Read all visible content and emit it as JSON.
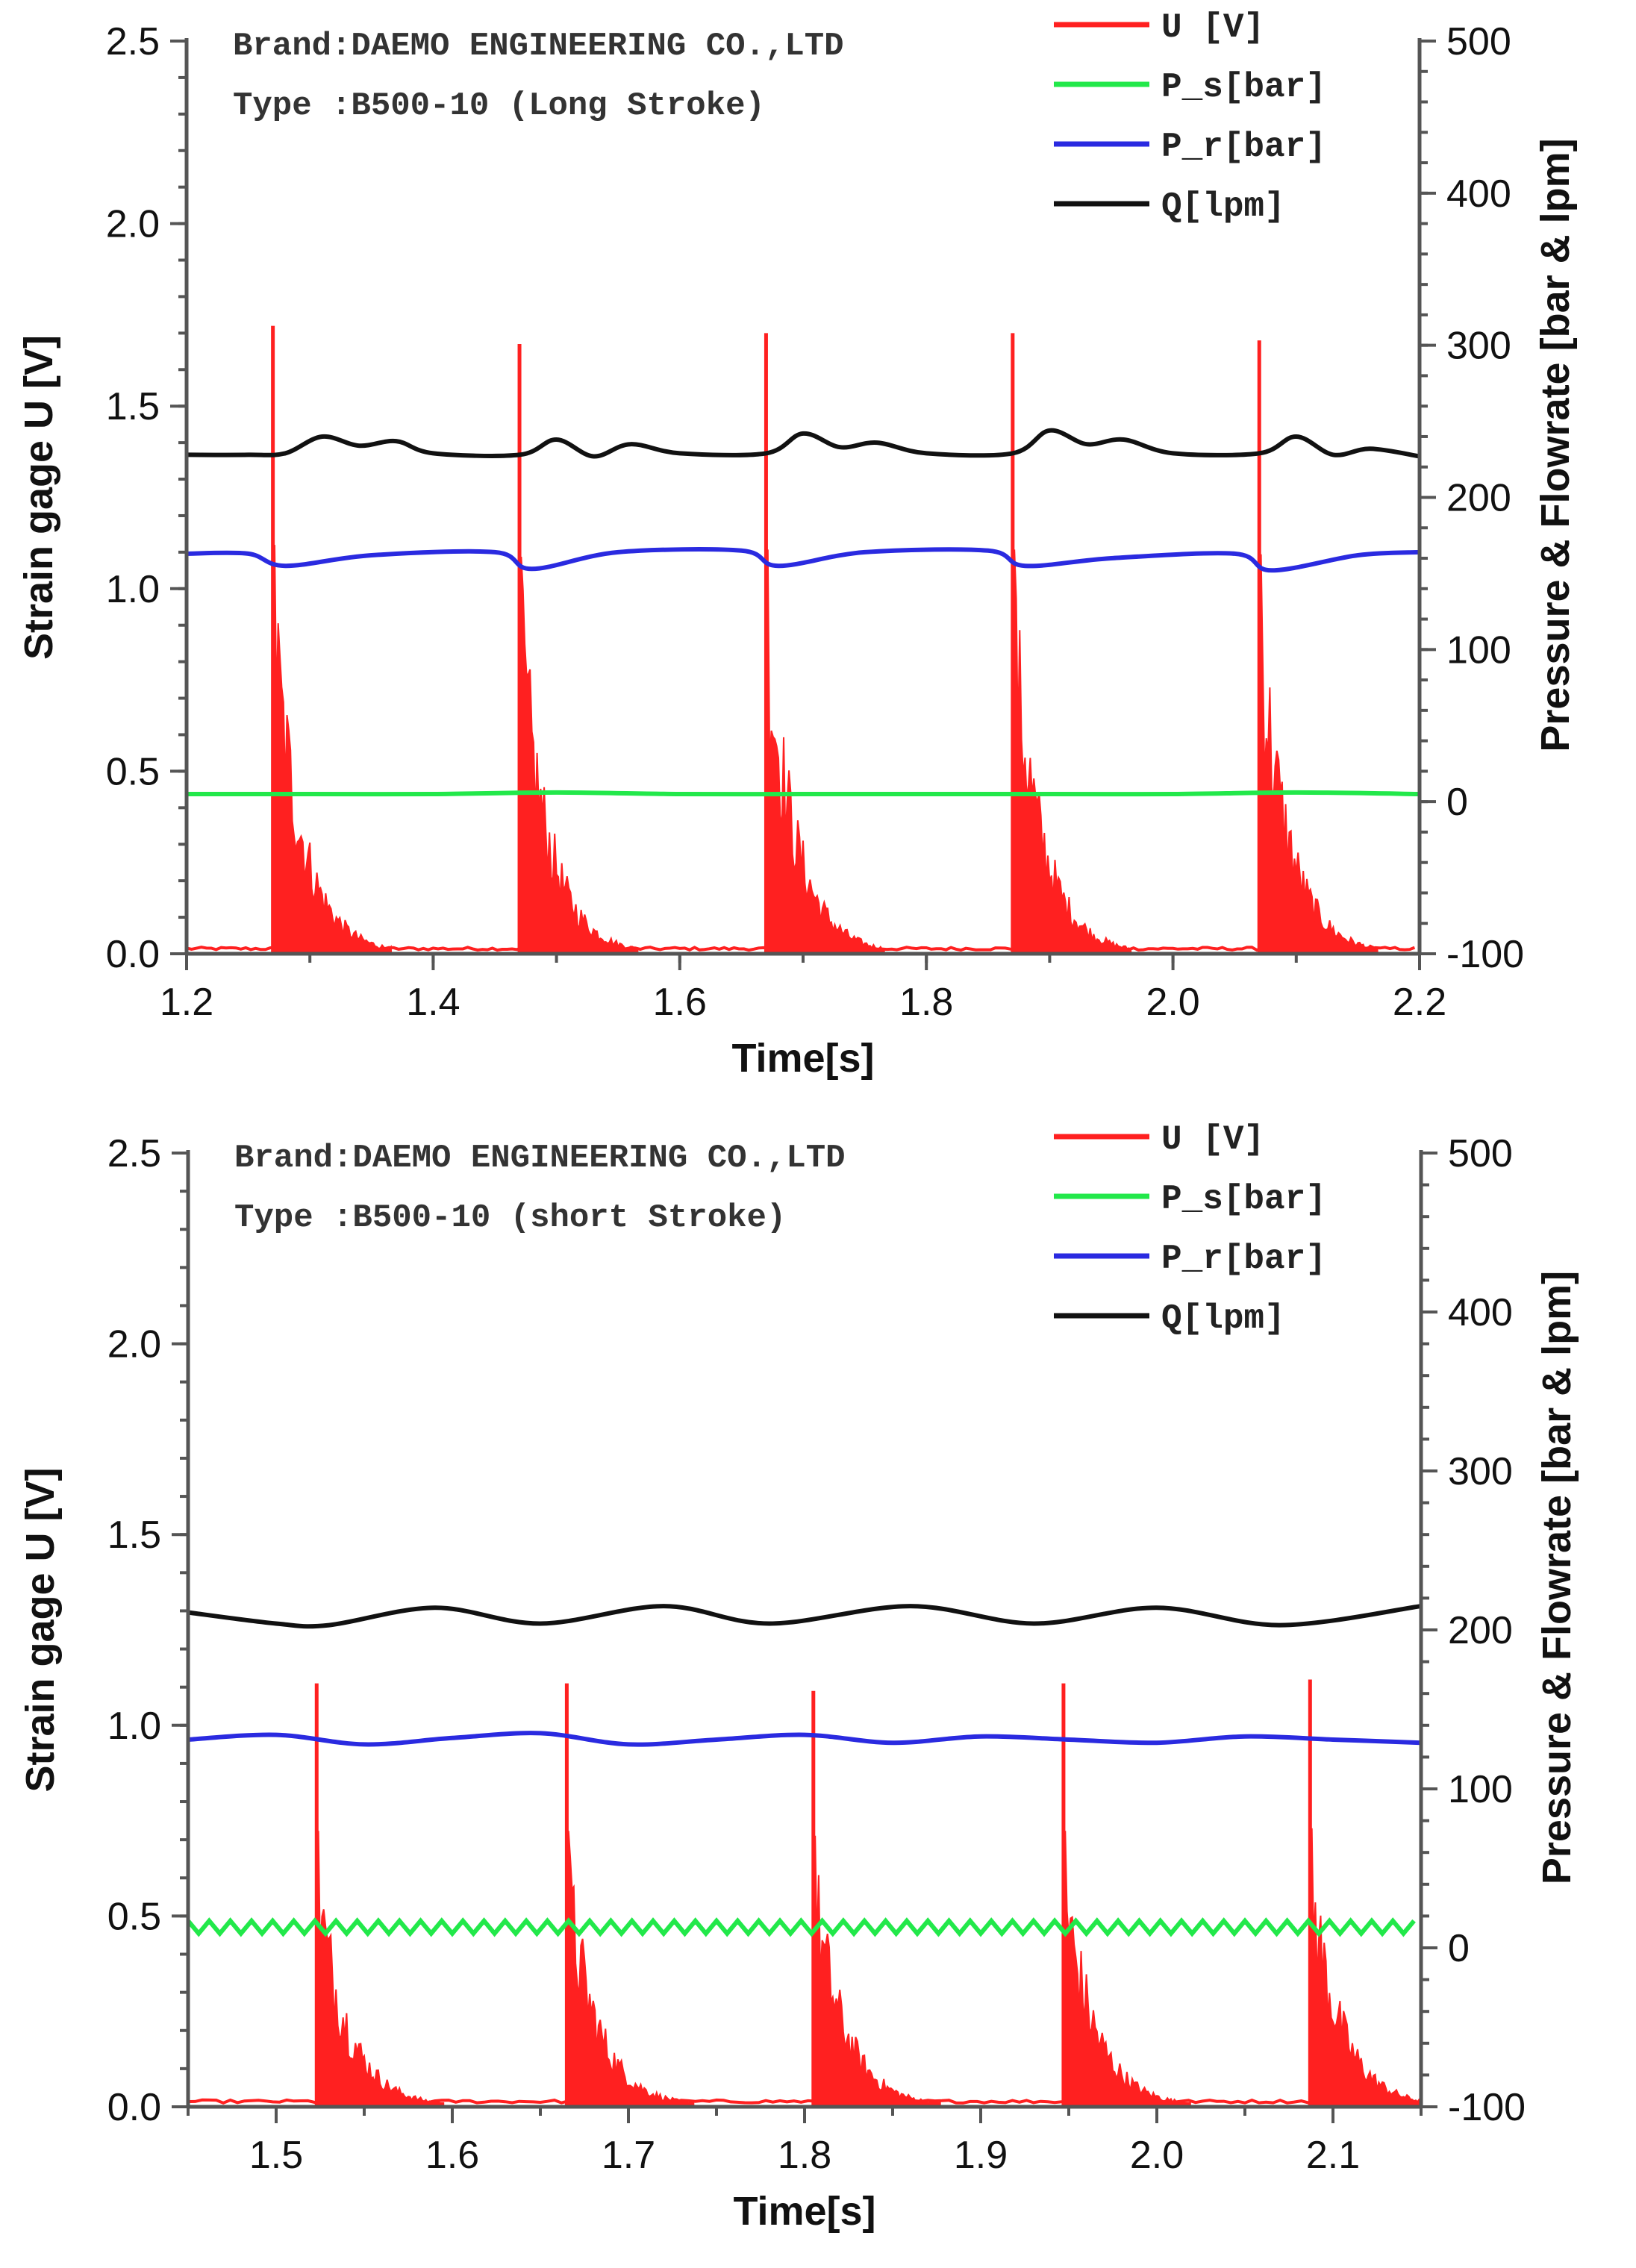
{
  "chart_data": [
    {
      "type": "line",
      "annotations": [
        "Brand:DAEMO ENGINEERING CO.,LTD",
        "Type :B500-10 (Long Stroke)"
      ],
      "xlabel": "Time[s]",
      "ylabel": "Strain gage U [V]",
      "y2label": "Pressure & Flowrate [bar & lpm]",
      "xlim": [
        1.2,
        2.2
      ],
      "ylim": [
        0.0,
        2.5
      ],
      "y2lim": [
        -100,
        500
      ],
      "xticks": [
        "1.2",
        "1.4",
        "1.6",
        "1.8",
        "2.0",
        "2.2"
      ],
      "yticks": [
        "0.0",
        "0.5",
        "1.0",
        "1.5",
        "2.0",
        "2.5"
      ],
      "y2ticks": [
        "-100",
        "0",
        "100",
        "200",
        "300",
        "400",
        "500"
      ],
      "legend_position": "top-right",
      "series": [
        {
          "name": "U [V]",
          "axis": "left",
          "color": "#ff2020",
          "kind": "spike-train",
          "pulse_times": [
            1.27,
            1.47,
            1.67,
            1.87,
            2.07
          ],
          "peak_values": [
            1.72,
            1.67,
            1.7,
            1.7,
            1.68
          ],
          "decay_width": 0.06,
          "baseline": 0.01
        },
        {
          "name": "P_s[bar]",
          "axis": "right",
          "color": "#22e84a",
          "kind": "line",
          "x": [
            1.2,
            1.3,
            1.4,
            1.5,
            1.6,
            1.7,
            1.8,
            1.9,
            2.0,
            2.1,
            2.2
          ],
          "y": [
            5,
            5,
            5,
            6,
            5,
            5,
            5,
            5,
            5,
            6,
            5
          ]
        },
        {
          "name": "P_r[bar]",
          "axis": "right",
          "color": "#2a2ae0",
          "kind": "line",
          "x": [
            1.2,
            1.25,
            1.28,
            1.35,
            1.45,
            1.48,
            1.55,
            1.65,
            1.68,
            1.75,
            1.85,
            1.88,
            1.95,
            2.05,
            2.08,
            2.15,
            2.2
          ],
          "y": [
            163,
            163,
            155,
            162,
            164,
            153,
            164,
            165,
            155,
            164,
            165,
            155,
            160,
            163,
            152,
            162,
            164
          ]
        },
        {
          "name": "Q[lpm]",
          "axis": "right",
          "color": "#111111",
          "kind": "line",
          "x": [
            1.2,
            1.25,
            1.28,
            1.31,
            1.34,
            1.37,
            1.4,
            1.47,
            1.5,
            1.53,
            1.56,
            1.6,
            1.67,
            1.7,
            1.73,
            1.76,
            1.8,
            1.87,
            1.9,
            1.93,
            1.96,
            2.0,
            2.07,
            2.1,
            2.13,
            2.16,
            2.2
          ],
          "y": [
            228,
            228,
            229,
            240,
            234,
            237,
            229,
            228,
            238,
            227,
            235,
            229,
            229,
            242,
            233,
            236,
            229,
            229,
            244,
            235,
            238,
            229,
            229,
            240,
            228,
            232,
            227
          ]
        }
      ]
    },
    {
      "type": "line",
      "annotations": [
        "Brand:DAEMO ENGINEERING CO.,LTD",
        "Type :B500-10 (short Stroke)"
      ],
      "xlabel": "Time[s]",
      "ylabel": "Strain gage U [V]",
      "y2label": "Pressure & Flowrate [bar & lpm]",
      "xlim": [
        1.45,
        2.15
      ],
      "ylim": [
        0.0,
        2.5
      ],
      "y2lim": [
        -100,
        500
      ],
      "xticks": [
        "1.5",
        "1.6",
        "1.7",
        "1.8",
        "1.9",
        "2.0",
        "2.1"
      ],
      "yticks": [
        "0.0",
        "0.5",
        "1.0",
        "1.5",
        "2.0",
        "2.5"
      ],
      "y2ticks": [
        "-100",
        "0",
        "100",
        "200",
        "300",
        "400",
        "500"
      ],
      "legend_position": "top-right",
      "series": [
        {
          "name": "U [V]",
          "axis": "left",
          "color": "#ff2020",
          "kind": "spike-train",
          "pulse_times": [
            1.523,
            1.665,
            1.805,
            1.947,
            2.087
          ],
          "peak_values": [
            1.11,
            1.11,
            1.09,
            1.11,
            1.12
          ],
          "decay_width": 0.045,
          "baseline": 0.01
        },
        {
          "name": "P_s[bar]",
          "axis": "right",
          "color": "#22e84a",
          "kind": "zigzag",
          "center": 13,
          "amplitude": 4,
          "period": 0.012
        },
        {
          "name": "P_r[bar]",
          "axis": "right",
          "color": "#2a2ae0",
          "kind": "line",
          "x": [
            1.45,
            1.5,
            1.55,
            1.6,
            1.65,
            1.7,
            1.75,
            1.8,
            1.85,
            1.9,
            1.95,
            2.0,
            2.05,
            2.1,
            2.15
          ],
          "y": [
            131,
            134,
            128,
            132,
            135,
            128,
            131,
            134,
            129,
            133,
            131,
            129,
            133,
            131,
            129
          ]
        },
        {
          "name": "Q[lpm]",
          "axis": "right",
          "color": "#111111",
          "kind": "line",
          "x": [
            1.45,
            1.5,
            1.53,
            1.59,
            1.65,
            1.72,
            1.78,
            1.86,
            1.93,
            2.0,
            2.07,
            2.15
          ],
          "y": [
            211,
            204,
            203,
            214,
            204,
            215,
            204,
            215,
            204,
            214,
            203,
            215
          ]
        }
      ]
    }
  ]
}
